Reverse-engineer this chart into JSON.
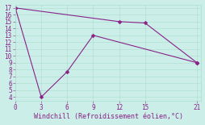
{
  "xlabel": "Windchill (Refroidissement éolien,°C)",
  "top_line_x": [
    0,
    12,
    15,
    21
  ],
  "top_line_y": [
    17,
    15,
    14.8,
    9
  ],
  "bottom_line_x": [
    0,
    3,
    6,
    9,
    21
  ],
  "bottom_line_y": [
    17,
    4,
    7.7,
    13,
    9
  ],
  "line_color": "#882288",
  "markersize": 2.5,
  "linewidth": 0.8,
  "xlim": [
    0,
    21.5
  ],
  "ylim": [
    3.5,
    17.5
  ],
  "xticks": [
    0,
    3,
    6,
    9,
    12,
    15,
    21
  ],
  "yticks": [
    4,
    5,
    6,
    7,
    8,
    9,
    10,
    11,
    12,
    13,
    14,
    15,
    16,
    17
  ],
  "bg_color": "#cceee8",
  "grid_color": "#aaddcc",
  "font_color": "#882288",
  "tick_fontsize": 5.5,
  "xlabel_fontsize": 6.0
}
